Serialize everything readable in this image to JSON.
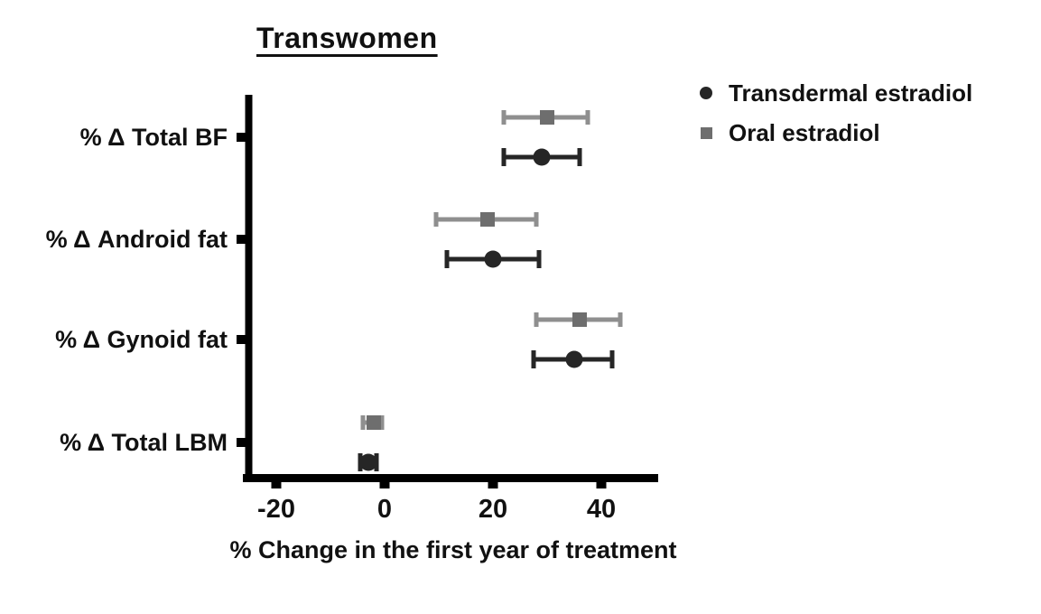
{
  "title": "Transwomen",
  "legend": {
    "items": [
      {
        "label": "Transdermal estradiol",
        "marker": "circle",
        "color": "#262626"
      },
      {
        "label": "Oral estradiol",
        "marker": "square",
        "color": "#6e6e6e"
      }
    ]
  },
  "chart_data": {
    "type": "scatter",
    "subtype": "horizontal-dot-error-bar",
    "title": "Transwomen",
    "xlabel": "% Change in the first year of treatment",
    "categories": [
      "% Δ Total BF",
      "% Δ Android fat",
      "% Δ Gynoid fat",
      "% Δ Total LBM"
    ],
    "x_ticks": [
      -20,
      0,
      20,
      40
    ],
    "xlim": [
      -26,
      50
    ],
    "grid": false,
    "legend_position": "top-right",
    "series": [
      {
        "name": "Transdermal estradiol",
        "marker": "circle",
        "color": "#262626",
        "values": [
          29,
          20,
          35,
          -3
        ],
        "ci_low": [
          22,
          11.5,
          27.5,
          -4.5
        ],
        "ci_high": [
          36,
          28.5,
          42,
          -1.5
        ]
      },
      {
        "name": "Oral estradiol",
        "marker": "square",
        "color": "#8f8f8f",
        "marker_color": "#6e6e6e",
        "values": [
          30,
          19,
          36,
          -2
        ],
        "ci_low": [
          22,
          9.5,
          28,
          -4
        ],
        "ci_high": [
          37.5,
          28,
          43.5,
          -0.5
        ]
      }
    ]
  }
}
